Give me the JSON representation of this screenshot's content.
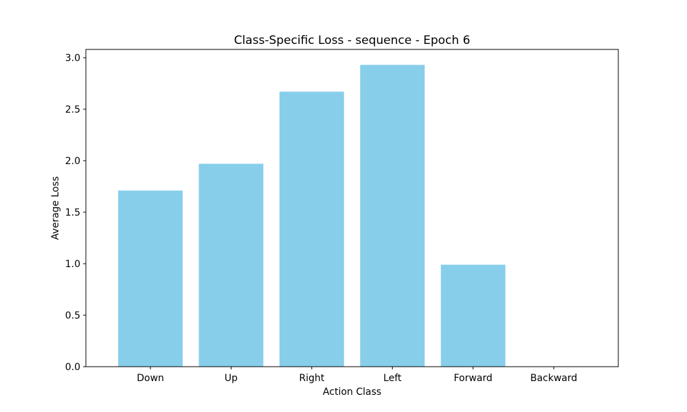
{
  "chart_data": {
    "type": "bar",
    "title": "Class-Specific Loss - sequence - Epoch 6",
    "xlabel": "Action Class",
    "ylabel": "Average Loss",
    "categories": [
      "Down",
      "Up",
      "Right",
      "Left",
      "Forward",
      "Backward"
    ],
    "values": [
      1.71,
      1.97,
      2.67,
      2.93,
      0.99,
      0.0
    ],
    "ylim": [
      0,
      3.08
    ],
    "yticks": [
      "0.0",
      "0.5",
      "1.0",
      "1.5",
      "2.0",
      "2.5",
      "3.0"
    ],
    "bar_color": "#87ceeb",
    "grid": false
  }
}
